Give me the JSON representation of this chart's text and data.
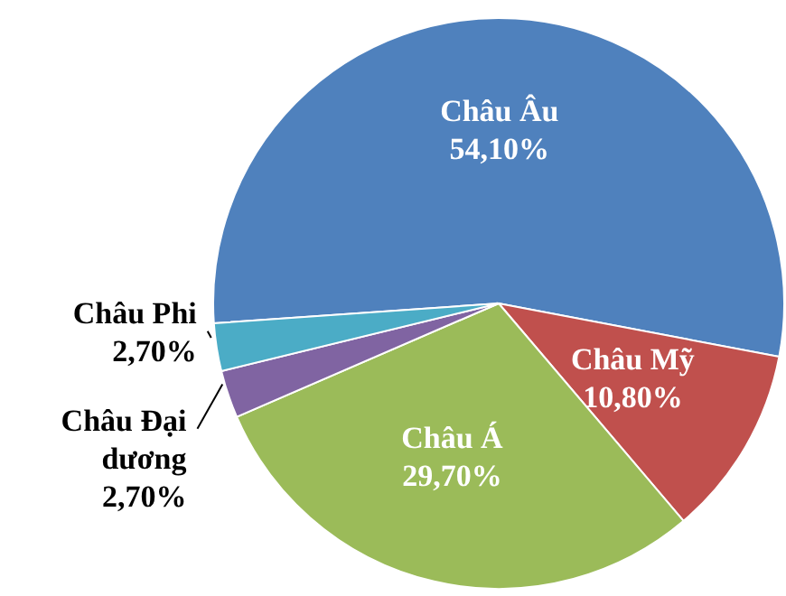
{
  "chart_data": {
    "type": "pie",
    "categories": [
      "Châu Âu",
      "Châu Mỹ",
      "Châu Á",
      "Châu Đại dương",
      "Châu Phi"
    ],
    "values": [
      54.1,
      10.8,
      29.7,
      2.7,
      2.7
    ],
    "colors": [
      "#4f81bd",
      "#c0504d",
      "#9bbb59",
      "#8064a2",
      "#4bacc6"
    ],
    "value_labels": [
      "54,10%",
      "10,80%",
      "29,70%",
      "2,70%",
      "2,70%"
    ]
  }
}
